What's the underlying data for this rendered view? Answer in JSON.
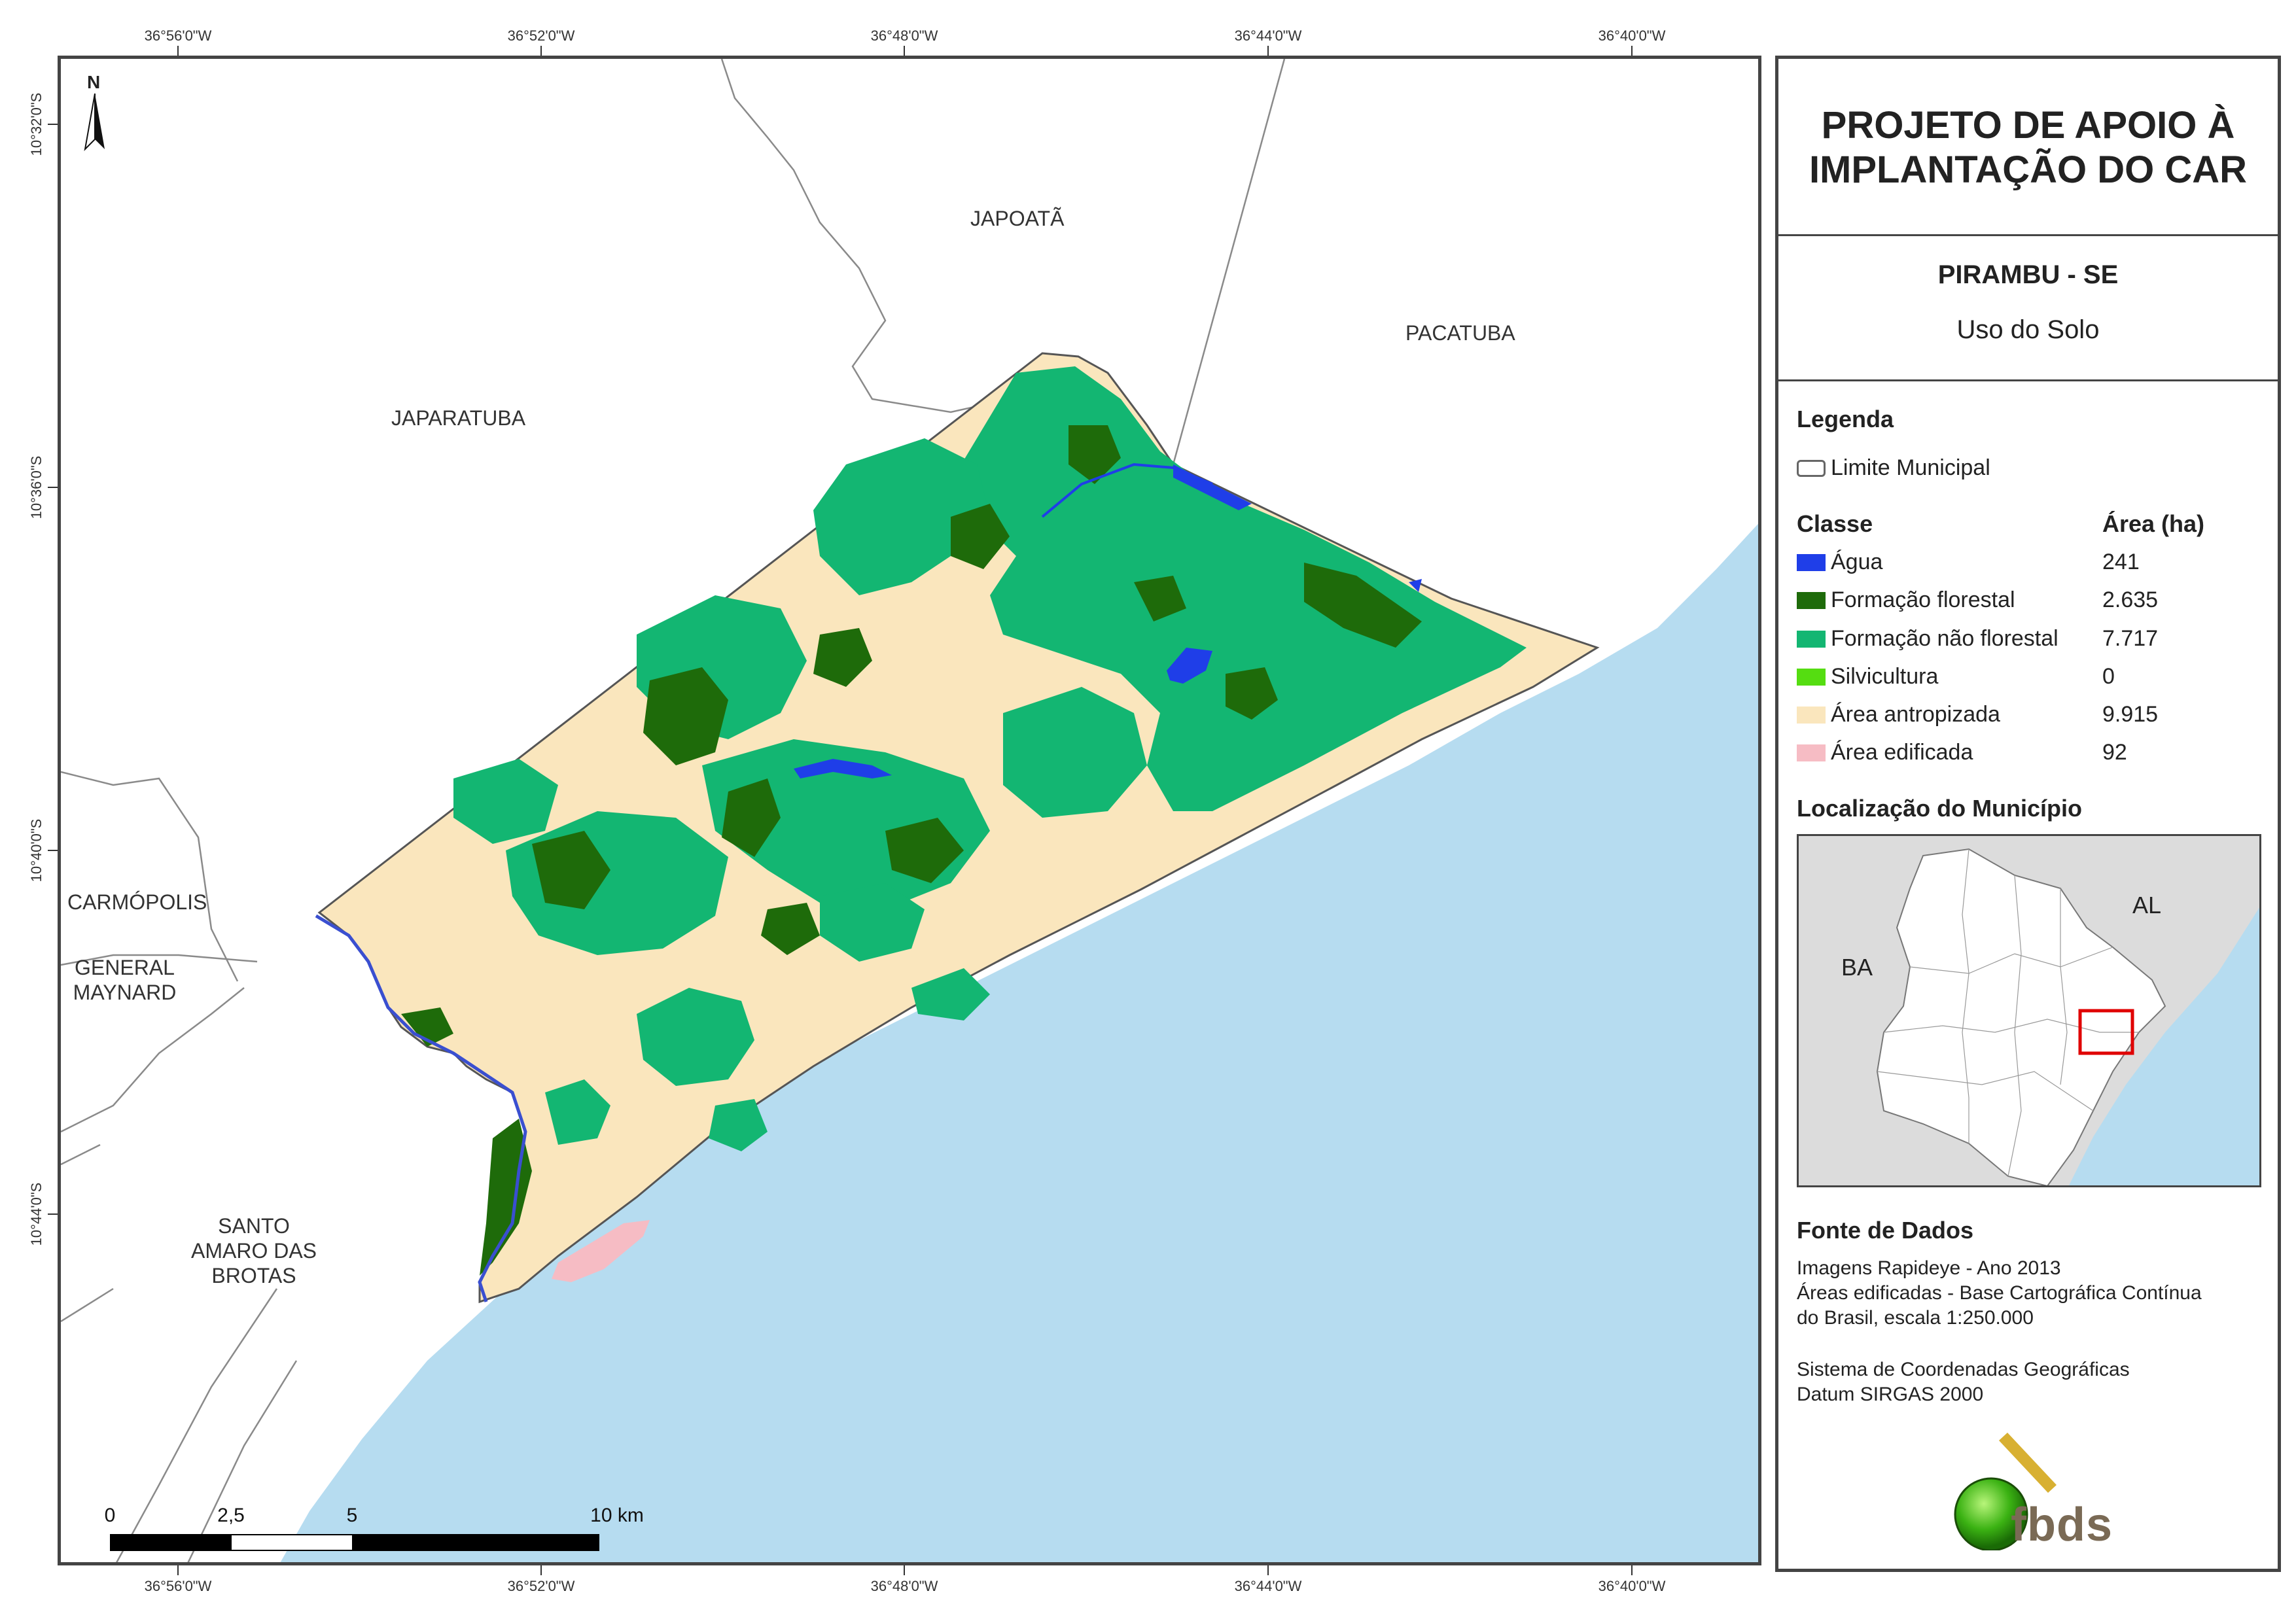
{
  "coordinates": {
    "longitude_labels": [
      "36°56'0\"W",
      "36°52'0\"W",
      "36°48'0\"W",
      "36°44'0\"W",
      "36°40'0\"W"
    ],
    "latitude_labels": [
      "10°32'0\"S",
      "10°36'0\"S",
      "10°40'0\"S",
      "10°44'0\"S"
    ]
  },
  "map": {
    "municipalities": {
      "japoata": "JAPOATÃ",
      "pacatuba": "PACATUBA",
      "japaratuba": "JAPARATUBA",
      "carmopolis": "CARMÓPOLIS",
      "general_maynard_1": "GENERAL",
      "general_maynard_2": "MAYNARD",
      "santo_amaro_1": "SANTO",
      "santo_amaro_2": "AMARO DAS",
      "santo_amaro_3": "BROTAS"
    },
    "north_label": "N",
    "scale_labels": [
      "0",
      "2,5",
      "5",
      "10 km"
    ],
    "colors": {
      "agua": "#1f3ee8",
      "formacao_florestal": "#1e6b0a",
      "formacao_nao_florestal": "#13b672",
      "silvicultura": "#55dd11",
      "area_antropizada": "#fae6bd",
      "area_edificada": "#f6bcc4",
      "ocean": "#b6dcf0",
      "land_outside": "#ffffff"
    }
  },
  "panel": {
    "project_title_line1": "PROJETO DE APOIO À",
    "project_title_line2": "IMPLANTAÇÃO DO CAR",
    "municipality": "PIRAMBU - SE",
    "theme": "Uso do Solo",
    "legend_title": "Legenda",
    "limite_label": "Limite Municipal",
    "class_header": "Classe",
    "area_header": "Área (ha)",
    "classes": [
      {
        "label": "Água",
        "area": "241",
        "color": "#1f3ee8"
      },
      {
        "label": "Formação florestal",
        "area": "2.635",
        "color": "#1e6b0a"
      },
      {
        "label": "Formação não florestal",
        "area": "7.717",
        "color": "#13b672"
      },
      {
        "label": "Silvicultura",
        "area": "0",
        "color": "#55dd11"
      },
      {
        "label": "Área antropizada",
        "area": "9.915",
        "color": "#fae6bd"
      },
      {
        "label": "Área edificada",
        "area": "92",
        "color": "#f6bcc4"
      }
    ],
    "location_title": "Localização do Município",
    "inset_labels": {
      "al": "AL",
      "ba": "BA"
    },
    "source_title": "Fonte de Dados",
    "source_lines": [
      "Imagens Rapideye - Ano 2013",
      "Áreas edificadas - Base Cartográfica Contínua",
      "do Brasil, escala 1:250.000"
    ],
    "crs_lines": [
      "Sistema de Coordenadas Geográficas",
      "Datum SIRGAS 2000"
    ],
    "logo_text": "fbds"
  }
}
